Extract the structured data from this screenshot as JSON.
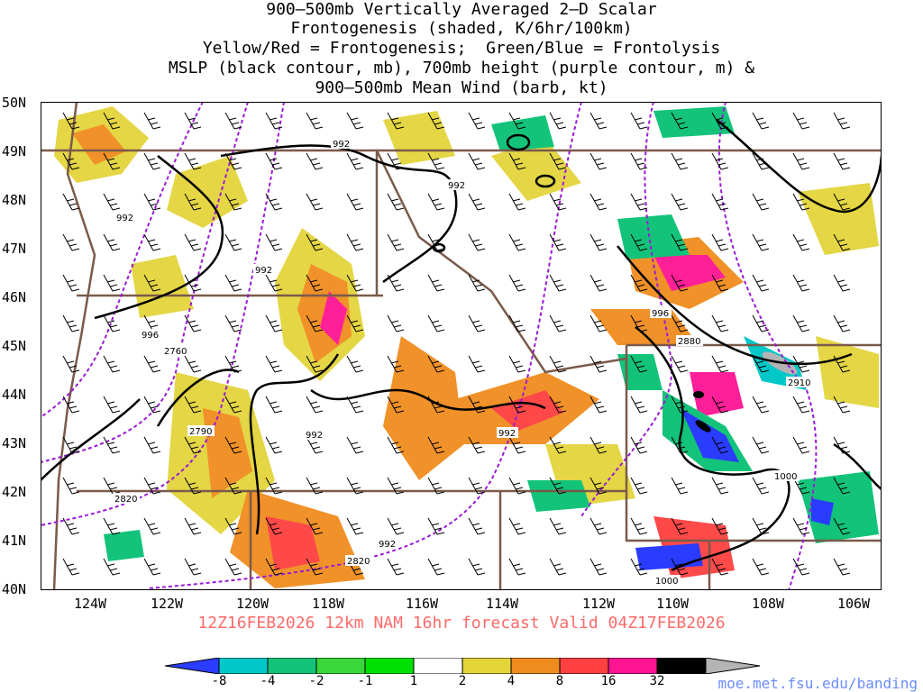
{
  "title": {
    "line1": "900–500mb Vertically Averaged 2–D Scalar",
    "line2": "Frontogenesis (shaded, K/6hr/100km)",
    "line3": "Yellow/Red = Frontogenesis;  Green/Blue = Frontolysis",
    "line4": "MSLP (black contour, mb), 700mb height (purple contour, m) &",
    "line5": "900–500mb Mean Wind (barb, kt)"
  },
  "latitude_labels": [
    "50N",
    "49N",
    "48N",
    "47N",
    "46N",
    "45N",
    "44N",
    "43N",
    "42N",
    "41N",
    "40N"
  ],
  "longitude_labels": [
    "124W",
    "122W",
    "120W",
    "118W",
    "116W",
    "114W",
    "112W",
    "110W",
    "108W",
    "106W"
  ],
  "contour_labels": {
    "mslp": [
      "992",
      "992",
      "992",
      "992",
      "996",
      "992",
      "992",
      "996",
      "992",
      "1000",
      "1000"
    ],
    "height": [
      "2760",
      "2790",
      "2820",
      "2820",
      "2880",
      "2910"
    ]
  },
  "model_run": "12Z16FEB2026 12km NAM 16hr forecast Valid 04Z17FEB2026",
  "colorbar": {
    "ticks": [
      "-8",
      "-4",
      "-2",
      "-1",
      "1",
      "2",
      "4",
      "8",
      "16",
      "32"
    ],
    "colors": [
      "#2a3cff",
      "#00c8c8",
      "#13c37a",
      "#3ad63a",
      "#00e000",
      "#ffffff",
      "#e3d43a",
      "#f08c1e",
      "#ff4040",
      "#ff1493",
      "#000000",
      "#b4b4b4"
    ]
  },
  "credit": "moe.met.fsu.edu/banding",
  "colors": {
    "mslp_contour": "#000000",
    "height_contour": "#9a1ad6",
    "state_border": "#7a5a4a",
    "frontogenesis": "#f08c1e",
    "frontolysis": "#13c37a"
  }
}
